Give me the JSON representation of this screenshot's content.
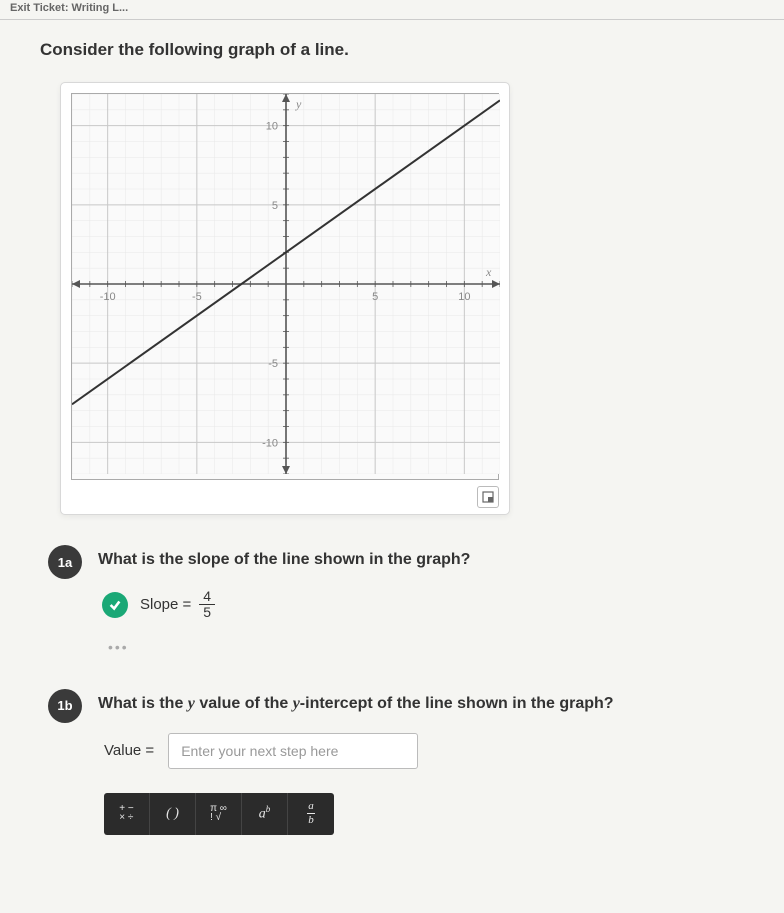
{
  "topbar": "Exit Ticket: Writing L...",
  "prompt": "Consider the following graph of a line.",
  "graph": {
    "type": "line",
    "xlim": [
      -12,
      12
    ],
    "ylim": [
      -12,
      12
    ],
    "major_step": 5,
    "minor_step": 1,
    "x_labels": [
      -10,
      -5,
      5,
      10
    ],
    "y_labels": [
      -10,
      -5,
      5,
      10
    ],
    "x_axis_label": "x",
    "y_axis_label": "y",
    "line_points": [
      [
        -12,
        -7.6
      ],
      [
        12,
        11.6
      ]
    ],
    "line_color": "#333333",
    "line_width": 2,
    "grid_major_color": "#c8c8c8",
    "grid_minor_color": "#e8e8e8",
    "axis_color": "#555555",
    "tick_label_color": "#888888",
    "tick_label_fontsize": 11,
    "background_color": "#fafafa"
  },
  "q1": {
    "badge": "1a",
    "text": "What is the slope of the line shown in the graph?",
    "answer_label": "Slope =",
    "frac_num": "4",
    "frac_den": "5",
    "correct": true
  },
  "q2": {
    "badge": "1b",
    "text_prefix": "What is the ",
    "text_var": "y",
    "text_mid": " value of the ",
    "text_var2": "y",
    "text_suffix": "-intercept of the line shown in the graph?",
    "value_label": "Value =",
    "placeholder": "Enter your next step here"
  },
  "toolbar": {
    "ops": {
      "tl": "+",
      "tr": "−",
      "bl": "×",
      "br": "÷"
    },
    "paren": "( )",
    "pi": "π",
    "inf": "∞",
    "bang": "!",
    "root": "√",
    "pow_base": "a",
    "pow_exp": "b",
    "frac_n": "a",
    "frac_d": "b"
  }
}
